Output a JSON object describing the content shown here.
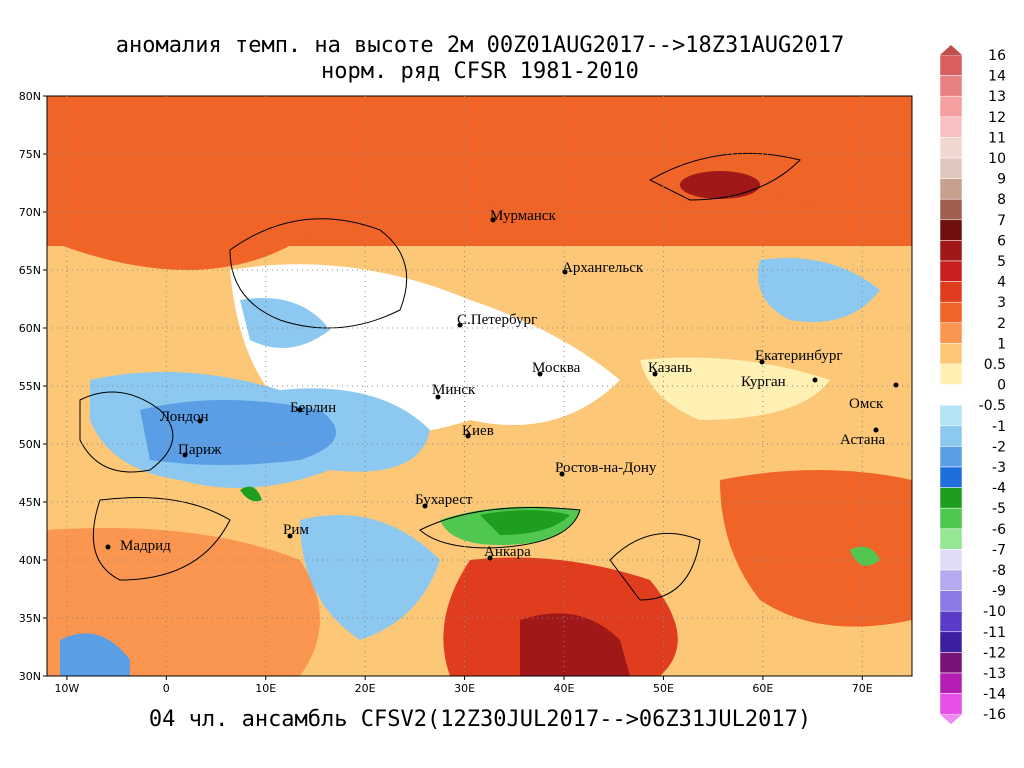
{
  "title": {
    "line1": "аномалия темп. на высоте 2м 00Z01AUG2017-->18Z31AUG2017",
    "line2": "норм. ряд CFSR 1981-2010"
  },
  "footer": "04 чл. ансамбль CFSV2(12Z30JUL2017-->06Z31JUL2017)",
  "map": {
    "lat_labels": [
      "80N",
      "75N",
      "70N",
      "65N",
      "60N",
      "55N",
      "50N",
      "45N",
      "40N",
      "35N",
      "30N"
    ],
    "lon_labels": [
      "10W",
      "0",
      "10E",
      "20E",
      "30E",
      "40E",
      "50E",
      "60E",
      "70E"
    ],
    "cities": [
      "Мурманск",
      "Архангельск",
      "С.Петербург",
      "Москва",
      "Казань",
      "Екатеринбург",
      "Курган",
      "Омск",
      "Астана",
      "Минск",
      "Киев",
      "Берлин",
      "Лондон",
      "Париж",
      "Ростов-на-Дону",
      "Бухарест",
      "Рим",
      "Мадрид",
      "Анкара"
    ]
  },
  "colorbar": {
    "labels": [
      "16",
      "14",
      "13",
      "12",
      "11",
      "10",
      "9",
      "8",
      "7",
      "6",
      "5",
      "4",
      "3",
      "2",
      "1",
      "0.5",
      "0",
      "-0.5",
      "-1",
      "-2",
      "-3",
      "-4",
      "-5",
      "-6",
      "-7",
      "-8",
      "-9",
      "-10",
      "-11",
      "-12",
      "-13",
      "-14",
      "-16"
    ],
    "colors": [
      "#d95f5f",
      "#e88080",
      "#f4a0a0",
      "#f8c0c0",
      "#f0d8d0",
      "#e0c8c0",
      "#c8a090",
      "#a06050",
      "#700f0f",
      "#a01818",
      "#c82020",
      "#e03c1e",
      "#f06428",
      "#fa9650",
      "#fcc878",
      "#fff0b4",
      "#ffffff",
      "#b4e4f8",
      "#8cc8f0",
      "#5a9ee6",
      "#1e6ede",
      "#1e9e1e",
      "#50c850",
      "#96e696",
      "#e0dcf8",
      "#b4aaf0",
      "#8c78e6",
      "#5a3cc8",
      "#3c1ea0",
      "#781478",
      "#b41eb4",
      "#e650e6"
    ],
    "over_color": "#c0504d",
    "under_color": "#f08cf0"
  }
}
